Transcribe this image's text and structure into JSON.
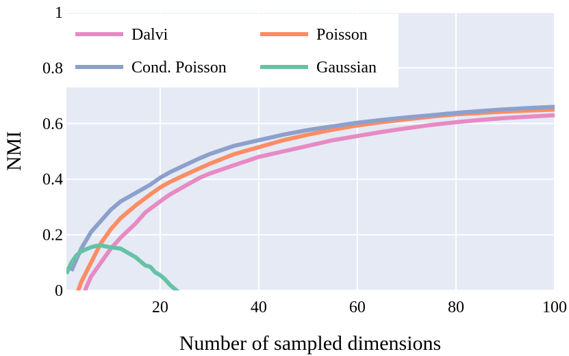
{
  "chart_data": {
    "type": "line",
    "title": "",
    "xlabel": "Number of sampled dimensions",
    "ylabel": "NMI",
    "xlim": [
      1,
      100
    ],
    "ylim": [
      0,
      1
    ],
    "grid": true,
    "x_ticks": [
      20,
      40,
      60,
      80,
      100
    ],
    "x_tick_labels": [
      "20",
      "40",
      "60",
      "80",
      "100"
    ],
    "y_ticks": [
      0,
      0.2,
      0.4,
      0.6,
      0.8,
      1
    ],
    "y_tick_labels": [
      "0",
      "0.2",
      "0.4",
      "0.6",
      "0.8",
      "1"
    ],
    "legend_position": "top-left",
    "series": [
      {
        "name": "Dalvi",
        "color": "#e78ac3",
        "x": [
          4,
          5,
          6,
          8,
          10,
          12,
          15,
          17,
          20,
          22,
          25,
          28,
          30,
          35,
          40,
          45,
          50,
          55,
          60,
          65,
          70,
          75,
          80,
          85,
          90,
          95,
          100
        ],
        "y": [
          -0.05,
          0.01,
          0.05,
          0.1,
          0.15,
          0.19,
          0.24,
          0.28,
          0.32,
          0.345,
          0.375,
          0.405,
          0.42,
          0.45,
          0.48,
          0.5,
          0.52,
          0.54,
          0.555,
          0.57,
          0.583,
          0.595,
          0.605,
          0.613,
          0.62,
          0.625,
          0.63
        ]
      },
      {
        "name": "Poisson",
        "color": "#fc8d62",
        "x": [
          3,
          4,
          6,
          8,
          10,
          12,
          15,
          18,
          20,
          22,
          25,
          30,
          35,
          40,
          45,
          50,
          55,
          60,
          65,
          70,
          75,
          80,
          85,
          90,
          95,
          100
        ],
        "y": [
          -0.02,
          0.03,
          0.1,
          0.17,
          0.22,
          0.26,
          0.305,
          0.345,
          0.37,
          0.39,
          0.415,
          0.455,
          0.49,
          0.515,
          0.54,
          0.56,
          0.578,
          0.593,
          0.605,
          0.615,
          0.625,
          0.633,
          0.638,
          0.643,
          0.647,
          0.65
        ]
      },
      {
        "name": "Cond. Poisson",
        "color": "#8da0cb",
        "x": [
          2,
          3,
          4,
          6,
          8,
          10,
          12,
          15,
          18,
          20,
          22,
          25,
          28,
          30,
          35,
          40,
          45,
          50,
          55,
          60,
          65,
          70,
          75,
          80,
          85,
          90,
          95,
          100
        ],
        "y": [
          0.07,
          0.11,
          0.15,
          0.21,
          0.25,
          0.29,
          0.32,
          0.35,
          0.38,
          0.405,
          0.425,
          0.45,
          0.475,
          0.49,
          0.52,
          0.54,
          0.56,
          0.577,
          0.59,
          0.603,
          0.613,
          0.622,
          0.63,
          0.638,
          0.645,
          0.651,
          0.656,
          0.66
        ]
      },
      {
        "name": "Gaussian",
        "color": "#66c2a5",
        "x": [
          1,
          2,
          3,
          4,
          5,
          6,
          7,
          8,
          9,
          10,
          12,
          14,
          15,
          16,
          17,
          18,
          19,
          20,
          21,
          22,
          23,
          24
        ],
        "y": [
          0.06,
          0.1,
          0.125,
          0.14,
          0.148,
          0.155,
          0.16,
          0.162,
          0.158,
          0.155,
          0.15,
          0.13,
          0.12,
          0.105,
          0.09,
          0.085,
          0.065,
          0.055,
          0.04,
          0.02,
          0.005,
          -0.01
        ]
      }
    ]
  }
}
